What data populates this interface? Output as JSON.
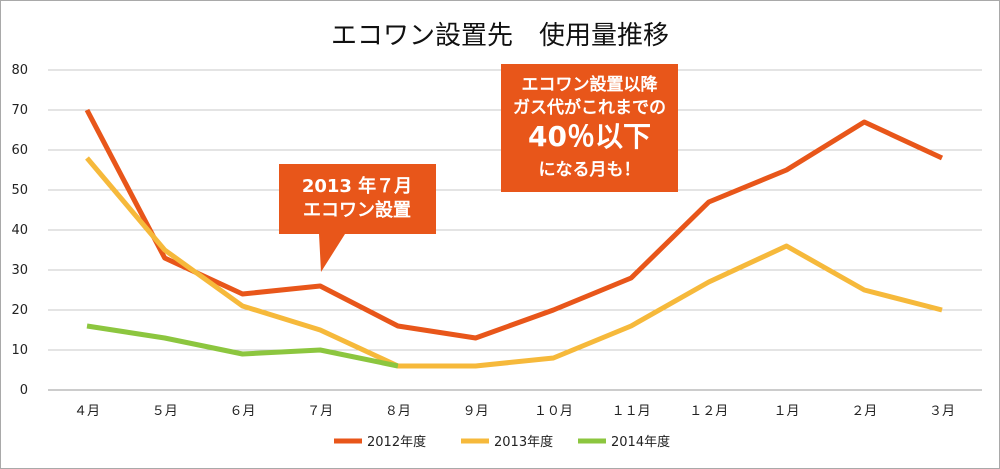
{
  "chart_data": {
    "type": "line",
    "title": "エコワン設置先　使用量推移",
    "xlabel": "",
    "ylabel": "",
    "ylim": [
      0,
      80
    ],
    "yticks": [
      0,
      10,
      20,
      30,
      40,
      50,
      60,
      70,
      80
    ],
    "grid": true,
    "legend_position": "bottom",
    "categories": [
      "４月",
      "５月",
      "６月",
      "７月",
      "８月",
      "９月",
      "１０月",
      "１１月",
      "１２月",
      "１月",
      "２月",
      "３月"
    ],
    "series": [
      {
        "name": "2012年度",
        "color": "#e8561a",
        "values": [
          70,
          33,
          24,
          26,
          16,
          13,
          20,
          28,
          47,
          55,
          67,
          58
        ]
      },
      {
        "name": "2013年度",
        "color": "#f6b93b",
        "values": [
          58,
          35,
          21,
          15,
          6,
          6,
          8,
          16,
          27,
          36,
          25,
          20
        ]
      },
      {
        "name": "2014年度",
        "color": "#8cc63f",
        "values": [
          16,
          13,
          9,
          10,
          6,
          null,
          null,
          null,
          null,
          null,
          null,
          null
        ]
      }
    ],
    "annotations": [
      {
        "lines": [
          "2013 年７月",
          "エコワン設置"
        ],
        "color": "#e8561a"
      },
      {
        "lines": [
          "エコワン設置以降",
          "ガス代がこれまでの",
          "40％以下",
          "になる月も！"
        ],
        "color": "#e8561a"
      }
    ]
  }
}
